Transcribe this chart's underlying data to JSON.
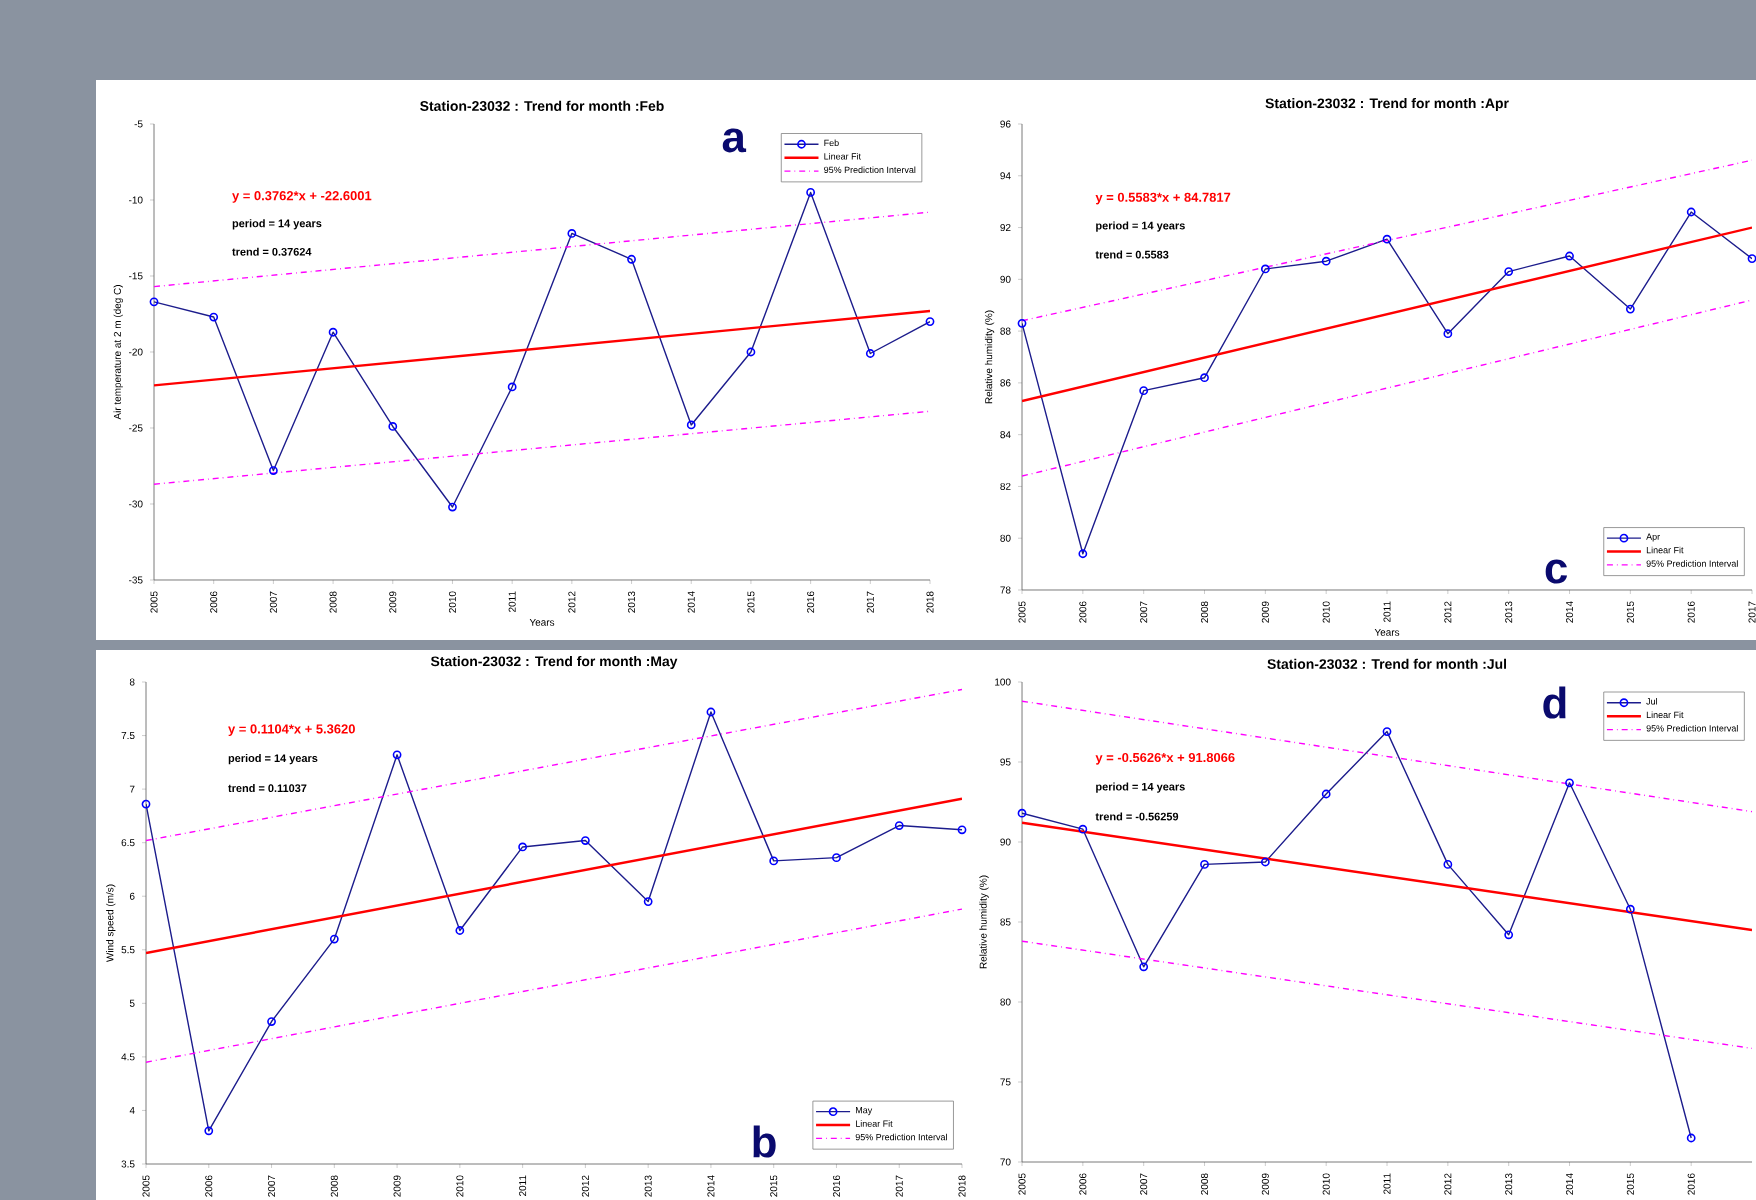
{
  "chart_data": [
    {
      "type": "line",
      "title": "Station-23032 : Trend for month :Feb",
      "xlabel": "Years",
      "ylabel": "Air temperature at 2 m (deg C)",
      "x": [
        2005,
        2006,
        2007,
        2008,
        2009,
        2010,
        2011,
        2012,
        2013,
        2014,
        2015,
        2016,
        2017,
        2018
      ],
      "xlim": [
        2005,
        2018
      ],
      "xticks": [
        2005,
        2006,
        2007,
        2008,
        2009,
        2010,
        2011,
        2012,
        2013,
        2014,
        2015,
        2016,
        2017,
        2018
      ],
      "ylim": [
        -35,
        -5
      ],
      "yticks": [
        -35,
        -30,
        -25,
        -20,
        -15,
        -10,
        -5
      ],
      "legend": "top right",
      "series": [
        {
          "name": "Feb",
          "color": "#1c1c8c",
          "marker": "circle",
          "line_style": "solid",
          "values": [
            -16.7,
            -17.7,
            -27.8,
            -18.7,
            -24.9,
            -30.2,
            -22.3,
            -12.2,
            -13.9,
            -24.8,
            -20.0,
            -9.5,
            -20.1,
            -18.0
          ]
        },
        {
          "name": "Linear Fit",
          "color": "#ff0000",
          "marker": "none",
          "line_style": "solid",
          "x": [
            2005,
            2018
          ],
          "values": [
            -22.2,
            -17.3
          ]
        },
        {
          "name": "95% Prediction Interval",
          "color": "#ff00ff",
          "marker": "none",
          "line_style": "dashed",
          "x": [
            2005,
            2018
          ],
          "values": [
            -15.7,
            -10.8
          ]
        },
        {
          "color": "#ff00ff",
          "marker": "none",
          "line_style": "dashed",
          "x": [
            2005,
            2018
          ],
          "values": [
            -28.7,
            -23.9
          ]
        }
      ],
      "annotations": [
        "y = 0.3762*x + -22.6001",
        "period = 14 years",
        "trend = 0.37624",
        "a"
      ]
    },
    {
      "type": "line",
      "title": "Station-23032 : Trend for month :Apr",
      "xlabel": "Years",
      "ylabel": "Relative humidity (%)",
      "x": [
        2005,
        2006,
        2007,
        2008,
        2009,
        2010,
        2011,
        2012,
        2013,
        2014,
        2015,
        2016,
        2017
      ],
      "xlim": [
        2005,
        2017
      ],
      "xticks": [
        2005,
        2006,
        2007,
        2008,
        2009,
        2010,
        2011,
        2012,
        2013,
        2014,
        2015,
        2016,
        2017
      ],
      "ylim": [
        78,
        96
      ],
      "yticks": [
        78,
        80,
        82,
        84,
        86,
        88,
        90,
        92,
        94,
        96
      ],
      "legend": "bottom right",
      "series": [
        {
          "name": "Apr",
          "color": "#1c1c8c",
          "marker": "circle",
          "line_style": "solid",
          "values": [
            88.3,
            79.4,
            85.7,
            86.2,
            90.4,
            90.7,
            91.55,
            87.9,
            90.3,
            90.9,
            88.85,
            92.6,
            90.8
          ]
        },
        {
          "name": "Linear Fit",
          "color": "#ff0000",
          "marker": "none",
          "line_style": "solid",
          "x": [
            2005,
            2017
          ],
          "values": [
            85.3,
            92.0
          ]
        },
        {
          "name": "95% Prediction Interval",
          "color": "#ff00ff",
          "marker": "none",
          "line_style": "dashed",
          "x": [
            2005,
            2017
          ],
          "values": [
            88.4,
            94.6
          ]
        },
        {
          "color": "#ff00ff",
          "marker": "none",
          "line_style": "dashed",
          "x": [
            2005,
            2017
          ],
          "values": [
            82.4,
            89.2
          ]
        }
      ],
      "annotations": [
        "y = 0.5583*x + 84.7817",
        "period = 14 years",
        "trend = 0.5583",
        "c"
      ]
    },
    {
      "type": "line",
      "title": "Station-23032 : Trend for month :May",
      "ylabel": "Wind speed (m/s)",
      "x": [
        2005,
        2006,
        2007,
        2008,
        2009,
        2010,
        2011,
        2012,
        2013,
        2014,
        2015,
        2016,
        2017,
        2018
      ],
      "xlim": [
        2005,
        2018
      ],
      "xticks": [
        2005,
        2006,
        2007,
        2008,
        2009,
        2010,
        2011,
        2012,
        2013,
        2014,
        2015,
        2016,
        2017,
        2018
      ],
      "ylim": [
        3.5,
        8
      ],
      "yticks": [
        3.5,
        4,
        4.5,
        5,
        5.5,
        6,
        6.5,
        7,
        7.5,
        8
      ],
      "legend": "bottom right",
      "series": [
        {
          "name": "May",
          "color": "#1c1c8c",
          "marker": "circle",
          "line_style": "solid",
          "values": [
            6.86,
            3.81,
            4.83,
            5.6,
            7.32,
            5.68,
            6.46,
            6.52,
            5.95,
            7.72,
            6.33,
            6.36,
            6.66,
            6.62
          ]
        },
        {
          "name": "Linear Fit",
          "color": "#ff0000",
          "marker": "none",
          "line_style": "solid",
          "x": [
            2005,
            2018
          ],
          "values": [
            5.47,
            6.91
          ]
        },
        {
          "name": "95% Prediction Interval",
          "color": "#ff00ff",
          "marker": "none",
          "line_style": "dashed",
          "x": [
            2005,
            2018
          ],
          "values": [
            6.52,
            7.93
          ]
        },
        {
          "color": "#ff00ff",
          "marker": "none",
          "line_style": "dashed",
          "x": [
            2005,
            2018
          ],
          "values": [
            4.45,
            5.88
          ]
        }
      ],
      "annotations": [
        "y = 0.1104*x + 5.3620",
        "period = 14 years",
        "trend = 0.11037",
        "b"
      ]
    },
    {
      "type": "line",
      "title": "Station-23032 : Trend for month :Jul",
      "ylabel": "Relative humidity (%)",
      "x": [
        2005,
        2006,
        2007,
        2008,
        2009,
        2010,
        2011,
        2012,
        2013,
        2014,
        2015,
        2016
      ],
      "xlim": [
        2005,
        2017
      ],
      "xticks": [
        2005,
        2006,
        2007,
        2008,
        2009,
        2010,
        2011,
        2012,
        2013,
        2014,
        2015,
        2016
      ],
      "ylim": [
        70,
        100
      ],
      "yticks": [
        70,
        75,
        80,
        85,
        90,
        95,
        100
      ],
      "legend": "top right",
      "series": [
        {
          "name": "Jul",
          "color": "#1c1c8c",
          "marker": "circle",
          "line_style": "solid",
          "values": [
            91.8,
            90.8,
            82.2,
            88.6,
            88.75,
            93.0,
            96.9,
            88.6,
            84.2,
            93.7,
            85.8,
            71.5
          ]
        },
        {
          "name": "Linear Fit",
          "color": "#ff0000",
          "marker": "none",
          "line_style": "solid",
          "x": [
            2005,
            2017
          ],
          "values": [
            91.2,
            84.5
          ]
        },
        {
          "name": "95% Prediction Interval",
          "color": "#ff00ff",
          "marker": "none",
          "line_style": "dashed",
          "x": [
            2005,
            2017
          ],
          "values": [
            98.8,
            91.9
          ]
        },
        {
          "color": "#ff00ff",
          "marker": "none",
          "line_style": "dashed",
          "x": [
            2005,
            2017
          ],
          "values": [
            83.8,
            77.1
          ]
        }
      ],
      "annotations": [
        "y = -0.5626*x + 91.8066",
        "period = 14 years",
        "trend = -0.56259",
        "d"
      ]
    }
  ]
}
